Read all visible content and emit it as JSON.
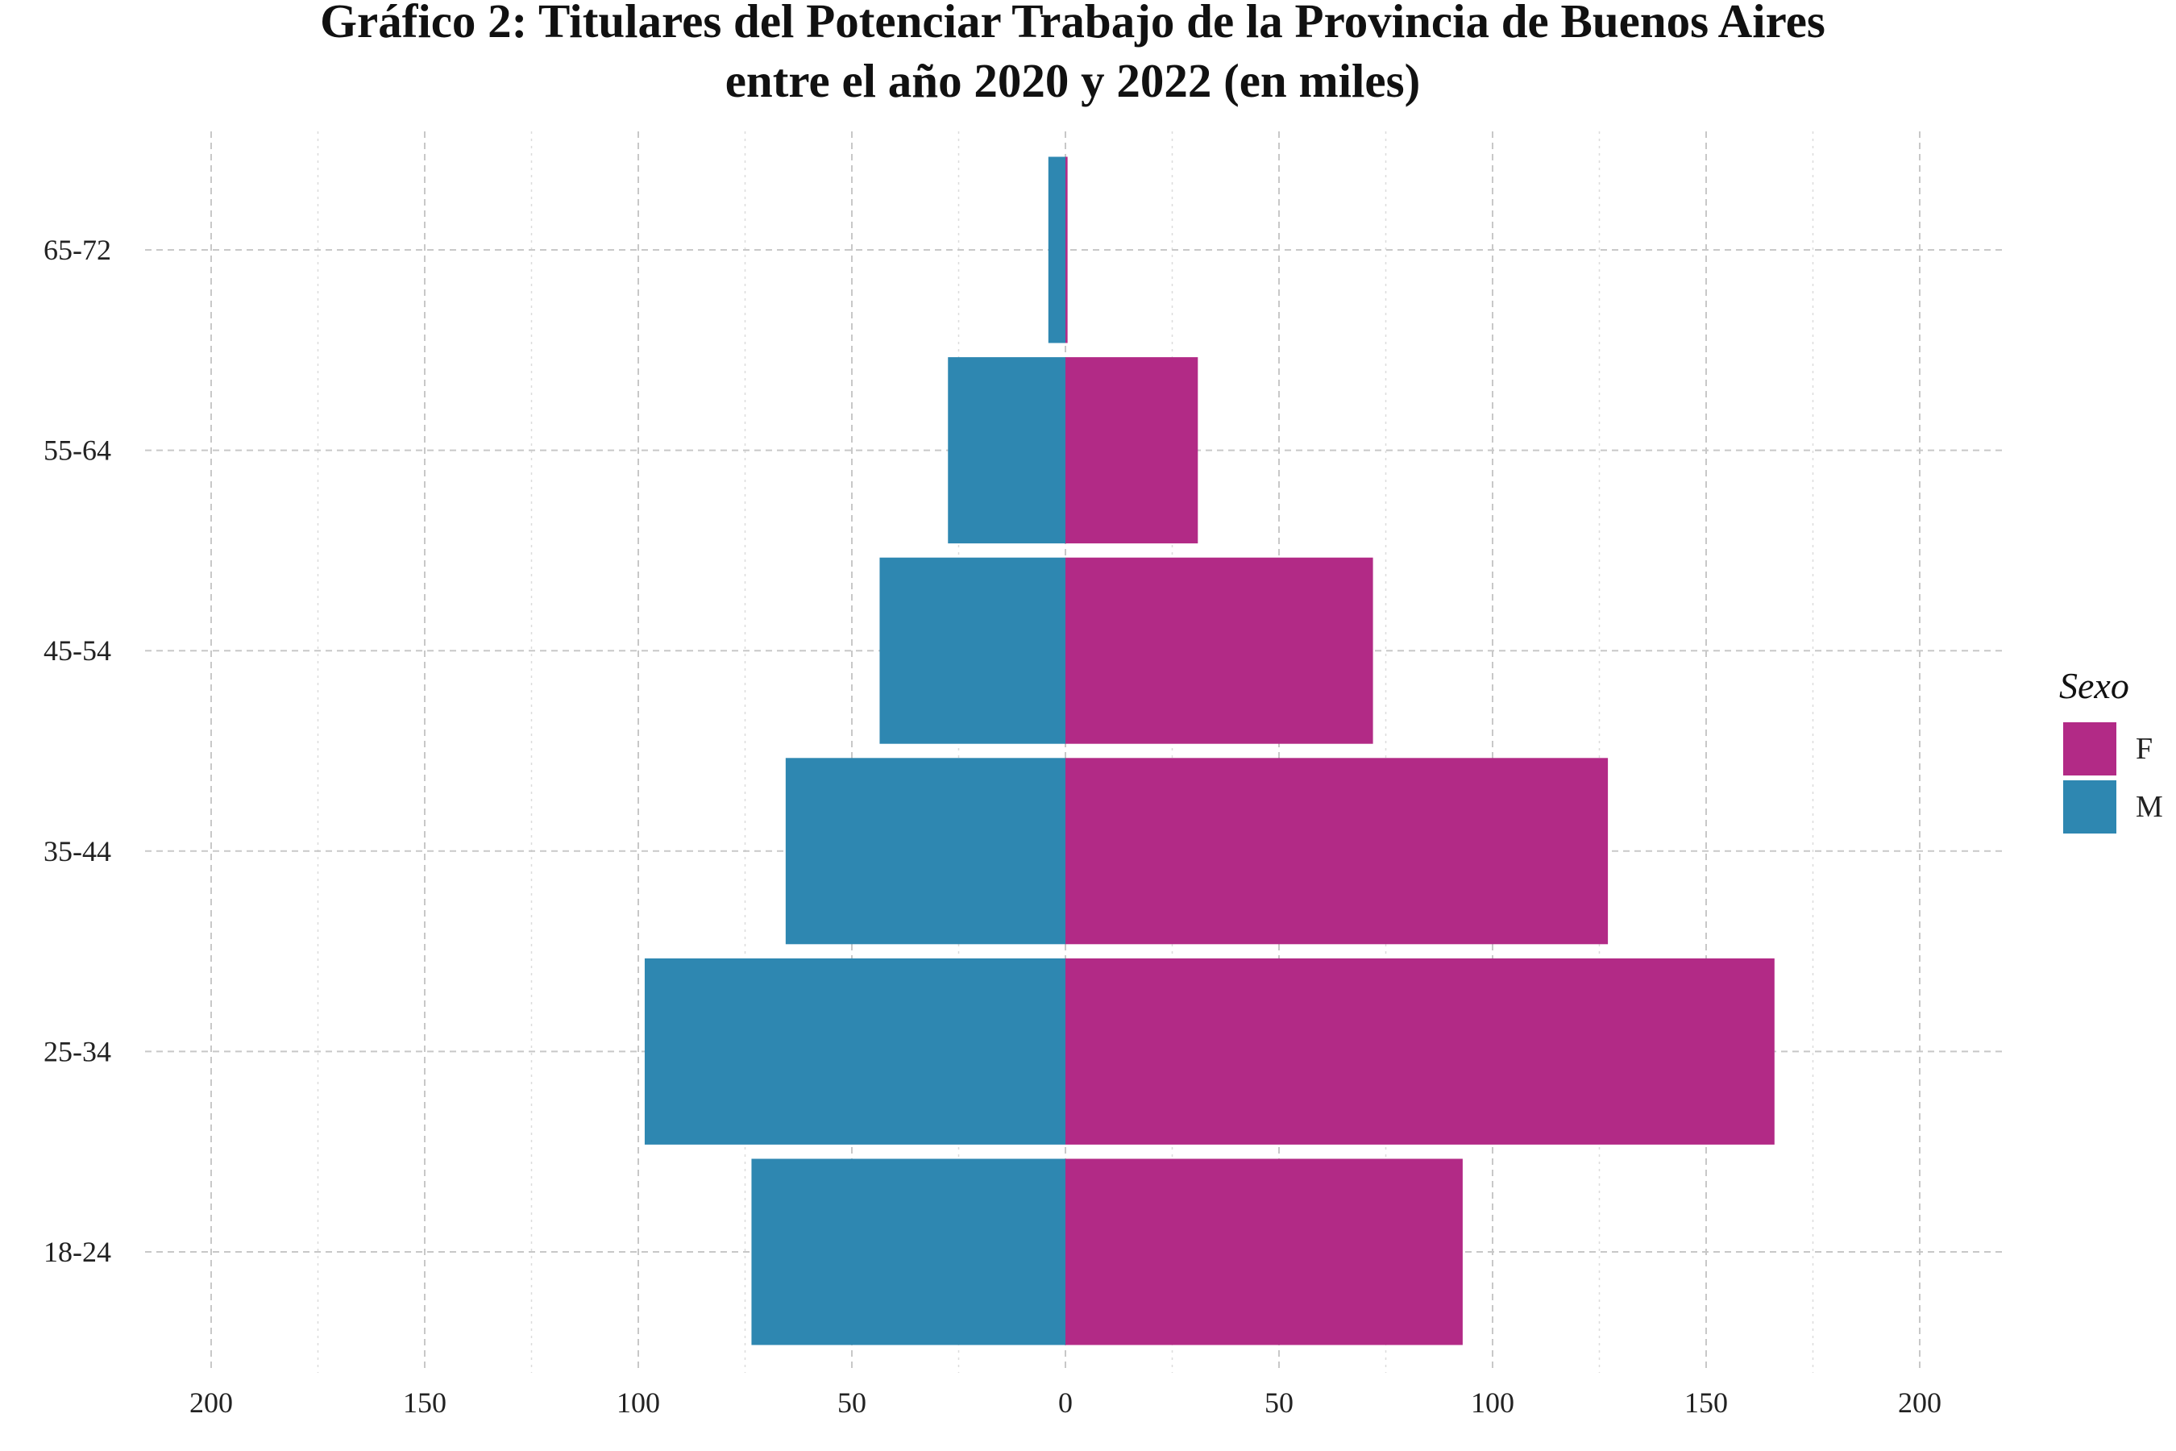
{
  "chart_data": {
    "type": "bar",
    "orientation": "horizontal-pyramid",
    "title": "Gráfico 2: Titulares del Potenciar Trabajo de la Provincia de Buenos Aires",
    "subtitle": "entre el año 2020 y 2022 (en miles)",
    "categories": [
      "18-24",
      "25-34",
      "35-44",
      "45-54",
      "55-64",
      "65-72"
    ],
    "series": [
      {
        "name": "F",
        "color": "#b22a86",
        "side": "right",
        "values": [
          93,
          166,
          127,
          72,
          31,
          0.5
        ]
      },
      {
        "name": "M",
        "color": "#2e87b1",
        "side": "left",
        "values": [
          73.5,
          98.5,
          65.5,
          43.5,
          27.5,
          4
        ]
      }
    ],
    "xlim": [
      -220,
      220
    ],
    "x_ticks": [
      -200,
      -150,
      -100,
      -50,
      0,
      50,
      100,
      150,
      200
    ],
    "x_tick_labels": [
      "200",
      "150",
      "100",
      "50",
      "0",
      "50",
      "100",
      "150",
      "200"
    ],
    "xlabel": "",
    "ylabel": "",
    "grid": true,
    "legend": {
      "title": "Sexo",
      "placement": "right",
      "items": [
        "F",
        "M"
      ]
    }
  }
}
